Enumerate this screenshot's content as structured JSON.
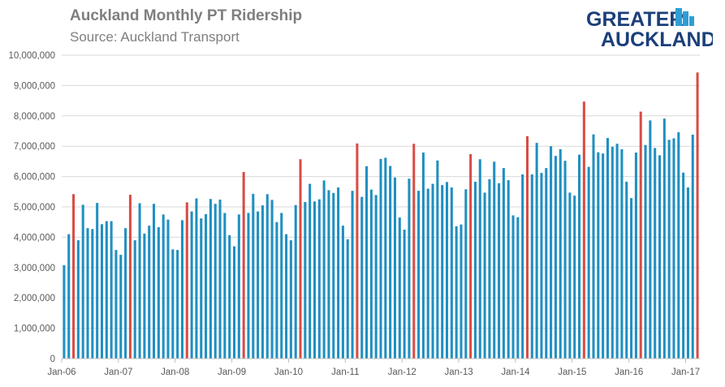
{
  "title": "Auckland Monthly PT Ridership",
  "subtitle": "Source: Auckland Transport",
  "logo": {
    "line1": "GREATER",
    "line2": "AUCKLAND"
  },
  "colors": {
    "normal": "#1f8fc1",
    "highlight": "#d84c45",
    "grid": "#d9d9d9",
    "axis": "#bfbfbf",
    "text": "#595959",
    "title": "#7f7f7f",
    "logo_dark": "#1b3f7a",
    "logo_light": "#2e9fd6"
  },
  "chart_data": {
    "type": "bar",
    "ylim": [
      0,
      10000000
    ],
    "yticks": [
      0,
      1000000,
      2000000,
      3000000,
      4000000,
      5000000,
      6000000,
      7000000,
      8000000,
      9000000,
      10000000
    ],
    "ytick_labels": [
      "0",
      "1,000,000",
      "2,000,000",
      "3,000,000",
      "4,000,000",
      "5,000,000",
      "6,000,000",
      "7,000,000",
      "8,000,000",
      "9,000,000",
      "10,000,000"
    ],
    "xtick_labels": [
      "Jan-06",
      "Jan-07",
      "Jan-08",
      "Jan-09",
      "Jan-10",
      "Jan-11",
      "Jan-12",
      "Jan-13",
      "Jan-14",
      "Jan-15",
      "Jan-16",
      "Jan-17"
    ],
    "xtick_every": 12,
    "grid": true,
    "highlight_rule": "March of each year",
    "values": [
      3080000,
      4100000,
      5420000,
      3900000,
      5070000,
      4300000,
      4270000,
      5130000,
      4430000,
      4530000,
      4530000,
      3580000,
      3420000,
      4300000,
      5400000,
      3900000,
      5120000,
      4120000,
      4380000,
      5100000,
      4330000,
      4750000,
      4580000,
      3600000,
      3580000,
      4560000,
      5150000,
      4850000,
      5280000,
      4620000,
      4760000,
      5260000,
      5100000,
      5240000,
      4800000,
      4070000,
      3700000,
      4750000,
      6150000,
      4800000,
      5430000,
      4850000,
      5050000,
      5420000,
      5230000,
      4500000,
      4800000,
      4100000,
      3900000,
      5060000,
      6570000,
      5160000,
      5760000,
      5180000,
      5250000,
      5870000,
      5550000,
      5460000,
      5640000,
      4380000,
      3930000,
      5530000,
      7090000,
      5330000,
      6340000,
      5570000,
      5390000,
      6580000,
      6620000,
      6350000,
      5970000,
      4650000,
      4250000,
      5930000,
      7080000,
      5530000,
      6790000,
      5600000,
      5760000,
      6530000,
      5720000,
      5820000,
      5640000,
      4360000,
      4420000,
      5580000,
      6740000,
      5830000,
      6570000,
      5470000,
      5910000,
      6490000,
      5780000,
      6280000,
      5880000,
      4720000,
      4660000,
      6070000,
      7330000,
      6070000,
      7110000,
      6120000,
      6280000,
      7000000,
      6680000,
      6900000,
      6520000,
      5470000,
      5370000,
      6720000,
      8470000,
      6320000,
      7390000,
      6800000,
      6760000,
      7270000,
      6980000,
      7080000,
      6900000,
      5830000,
      5290000,
      6790000,
      8140000,
      7040000,
      7850000,
      6940000,
      6700000,
      7910000,
      7210000,
      7260000,
      7460000,
      6130000,
      5640000,
      7380000,
      9430000
    ]
  }
}
